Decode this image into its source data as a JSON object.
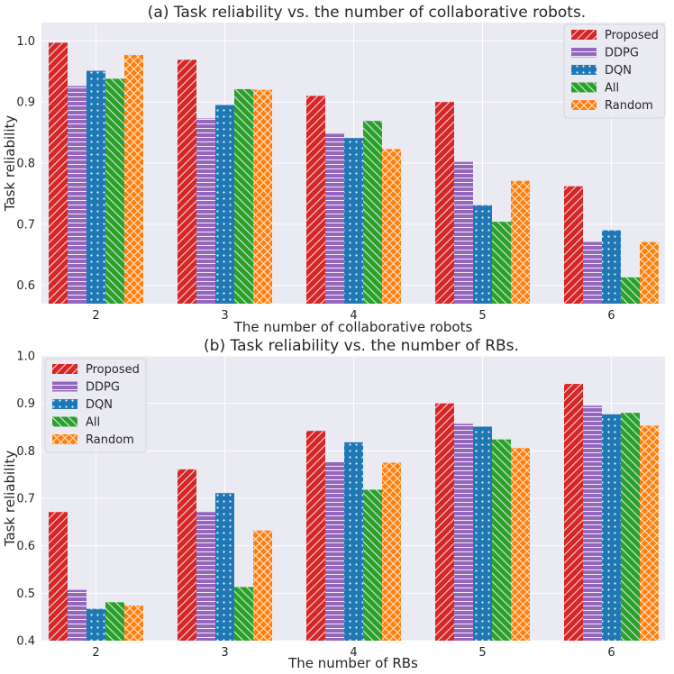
{
  "chart_data": [
    {
      "type": "bar",
      "title": "(a) Task reliability vs. the number of collaborative robots.",
      "xlabel": "The number of collaborative robots",
      "ylabel": "Task reliability",
      "categories": [
        "2",
        "3",
        "4",
        "5",
        "6"
      ],
      "ylim": [
        0.57,
        1.03
      ],
      "yticks": [
        0.6,
        0.7,
        0.8,
        0.9,
        1.0
      ],
      "ytick_labels": [
        "0.6",
        "0.7",
        "0.8",
        "0.9",
        "1.0"
      ],
      "legend_position": "top-right",
      "grid": true,
      "series": [
        {
          "name": "Proposed",
          "color": "#d62728",
          "hatch": "diag",
          "values": [
            0.997,
            0.969,
            0.91,
            0.9,
            0.762
          ]
        },
        {
          "name": "DDPG",
          "color": "#9467bd",
          "hatch": "horiz",
          "values": [
            0.926,
            0.873,
            0.848,
            0.802,
            0.671
          ]
        },
        {
          "name": "DQN",
          "color": "#1f77b4",
          "hatch": "dots",
          "values": [
            0.951,
            0.895,
            0.841,
            0.731,
            0.69
          ]
        },
        {
          "name": "All",
          "color": "#2ca02c",
          "hatch": "back",
          "values": [
            0.938,
            0.921,
            0.869,
            0.704,
            0.613
          ]
        },
        {
          "name": "Random",
          "color": "#ff7f0e",
          "hatch": "cross",
          "values": [
            0.977,
            0.92,
            0.823,
            0.771,
            0.671
          ]
        }
      ]
    },
    {
      "type": "bar",
      "title": "(b) Task reliability vs. the number of RBs.",
      "xlabel": "The number of RBs",
      "ylabel": "Task reliability",
      "categories": [
        "2",
        "3",
        "4",
        "5",
        "6"
      ],
      "ylim": [
        0.4,
        1.0
      ],
      "yticks": [
        0.4,
        0.5,
        0.6,
        0.7,
        0.8,
        0.9,
        1.0
      ],
      "ytick_labels": [
        "0.4",
        "0.5",
        "0.6",
        "0.7",
        "0.8",
        "0.9",
        "1.0"
      ],
      "legend_position": "top-left",
      "grid": true,
      "series": [
        {
          "name": "Proposed",
          "color": "#d62728",
          "hatch": "diag",
          "values": [
            0.671,
            0.761,
            0.842,
            0.9,
            0.941
          ]
        },
        {
          "name": "DDPG",
          "color": "#9467bd",
          "hatch": "horiz",
          "values": [
            0.507,
            0.671,
            0.777,
            0.857,
            0.895
          ]
        },
        {
          "name": "DQN",
          "color": "#1f77b4",
          "hatch": "dots",
          "values": [
            0.467,
            0.711,
            0.818,
            0.851,
            0.877
          ]
        },
        {
          "name": "All",
          "color": "#2ca02c",
          "hatch": "back",
          "values": [
            0.481,
            0.513,
            0.718,
            0.824,
            0.88
          ]
        },
        {
          "name": "Random",
          "color": "#ff7f0e",
          "hatch": "cross",
          "values": [
            0.474,
            0.632,
            0.775,
            0.806,
            0.853
          ]
        }
      ]
    }
  ]
}
